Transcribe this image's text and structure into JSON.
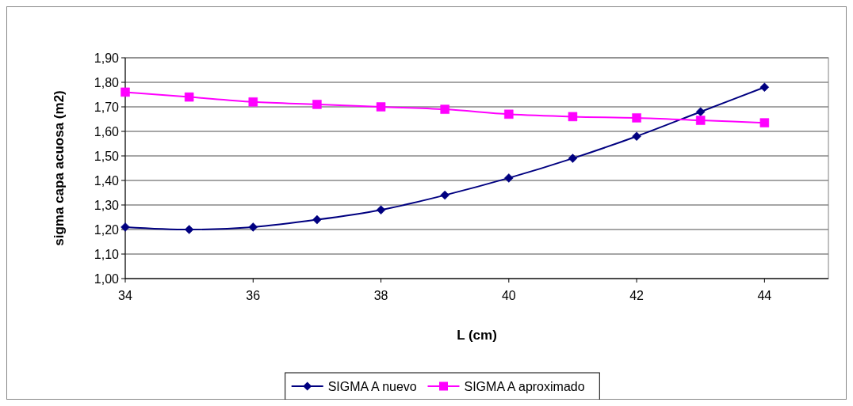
{
  "chart_data": {
    "type": "line",
    "xlabel": "L (cm)",
    "ylabel": "sigma capa acuosa (m2)",
    "x": [
      34,
      35,
      36,
      37,
      38,
      39,
      40,
      41,
      42,
      43,
      44
    ],
    "series": [
      {
        "name": "SIGMA A nuevo",
        "color": "#000080",
        "marker": "diamond",
        "values": [
          1.21,
          1.2,
          1.21,
          1.24,
          1.28,
          1.34,
          1.41,
          1.49,
          1.58,
          1.68,
          1.78
        ]
      },
      {
        "name": "SIGMA A aproximado",
        "color": "#ff00ff",
        "marker": "square",
        "values": [
          1.76,
          1.74,
          1.72,
          1.71,
          1.7,
          1.69,
          1.67,
          1.66,
          1.655,
          1.645,
          1.635
        ]
      }
    ],
    "xlim": [
      34,
      45
    ],
    "xticks": [
      34,
      36,
      38,
      40,
      42,
      44
    ],
    "ylim": [
      1.0,
      1.9
    ],
    "yticks": [
      {
        "value": 1.0,
        "label": "1,00"
      },
      {
        "value": 1.1,
        "label": "1,10"
      },
      {
        "value": 1.2,
        "label": "1,20"
      },
      {
        "value": 1.3,
        "label": "1,30"
      },
      {
        "value": 1.4,
        "label": "1,40"
      },
      {
        "value": 1.5,
        "label": "1,50"
      },
      {
        "value": 1.6,
        "label": "1,60"
      },
      {
        "value": 1.7,
        "label": "1,70"
      },
      {
        "value": 1.8,
        "label": "1,80"
      },
      {
        "value": 1.9,
        "label": "1,90"
      }
    ],
    "grid": "y",
    "legend": "bottom",
    "line_style": "solid"
  }
}
